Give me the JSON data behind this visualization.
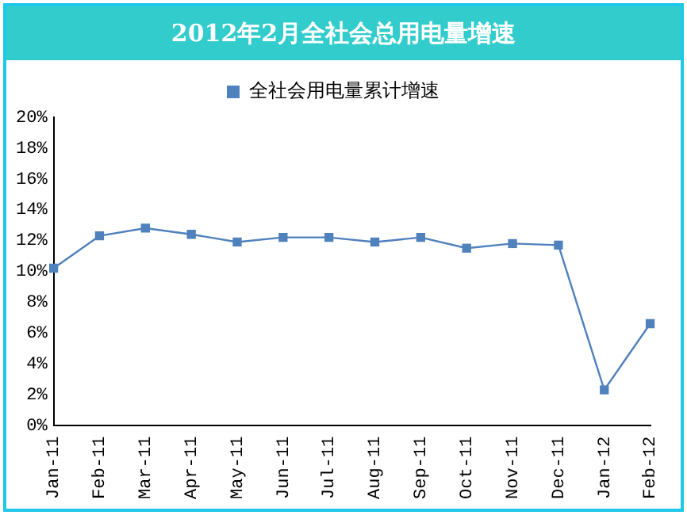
{
  "chart_data": {
    "type": "line",
    "title": "2012年2月全社会总用电量增速",
    "categories": [
      "Jan-11",
      "Feb-11",
      "Mar-11",
      "Apr-11",
      "May-11",
      "Jun-11",
      "Jul-11",
      "Aug-11",
      "Sep-11",
      "Oct-11",
      "Nov-11",
      "Dec-11",
      "Jan-12",
      "Feb-12"
    ],
    "series": [
      {
        "name": "全社会用电量累计增速",
        "color": "#4f81bd",
        "values": [
          10.2,
          12.3,
          12.8,
          12.4,
          11.9,
          12.2,
          12.2,
          11.9,
          12.2,
          11.5,
          11.8,
          11.7,
          2.3,
          6.6
        ]
      }
    ],
    "ylim": [
      0,
      20
    ],
    "yticks": [
      {
        "value": 0,
        "label": "0%"
      },
      {
        "value": 2,
        "label": "2%"
      },
      {
        "value": 4,
        "label": "4%"
      },
      {
        "value": 6,
        "label": "6%"
      },
      {
        "value": 8,
        "label": "8%"
      },
      {
        "value": 10,
        "label": "10%"
      },
      {
        "value": 12,
        "label": "12%"
      },
      {
        "value": 14,
        "label": "14%"
      },
      {
        "value": 16,
        "label": "16%"
      },
      {
        "value": 18,
        "label": "18%"
      },
      {
        "value": 20,
        "label": "20%"
      }
    ],
    "grid": false,
    "legend": "top",
    "marker": "square",
    "line_style": "solid"
  }
}
